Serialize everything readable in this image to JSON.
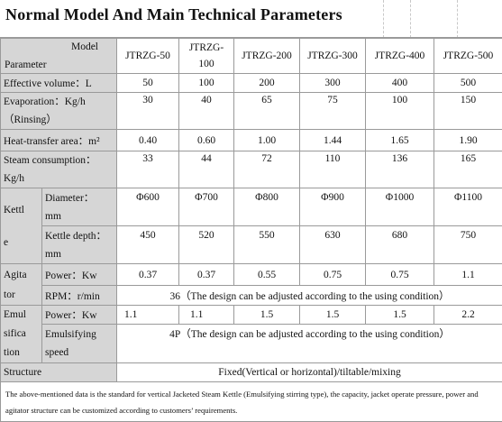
{
  "title": "Normal Model And Main Technical Parameters",
  "header": {
    "model_label": "Model",
    "parameter_label": "Parameter",
    "models": [
      "JTRZG-50",
      "JTRZG-\n100",
      "JTRZG-200",
      "JTRZG-300",
      "JTRZG-400",
      "JTRZG-500"
    ]
  },
  "rows": {
    "effective_volume": {
      "label": "Effective volume：L",
      "values": [
        "50",
        "100",
        "200",
        "300",
        "400",
        "500"
      ]
    },
    "evaporation": {
      "label": "Evaporation：Kg/h\n（Rinsing）",
      "values": [
        "30",
        "40",
        "65",
        "75",
        "100",
        "150"
      ]
    },
    "heat_transfer": {
      "label": "Heat-transfer area：m²",
      "values": [
        "0.40",
        "0.60",
        "1.00",
        "1.44",
        "1.65",
        "1.90"
      ]
    },
    "steam": {
      "label": "Steam consumption：\nKg/h",
      "values": [
        "33",
        "44",
        "72",
        "110",
        "136",
        "165"
      ]
    },
    "kettle": {
      "group": "Kettl\ne",
      "diameter_label": "Diameter：\nmm",
      "diameter": [
        "Φ600",
        "Φ700",
        "Φ800",
        "Φ900",
        "Φ1000",
        "Φ1100"
      ],
      "depth_label": "Kettle depth：\nmm",
      "depth": [
        "450",
        "520",
        "550",
        "630",
        "680",
        "750"
      ]
    },
    "agitator": {
      "group": "Agita\ntor",
      "power_label": "Power：Kw",
      "power": [
        "0.37",
        "0.37",
        "0.55",
        "0.75",
        "0.75",
        "1.1"
      ],
      "rpm_label": "RPM：r/min",
      "rpm_value": "36（The design can be adjusted according to the using condition）"
    },
    "emulsification": {
      "group": "Emul\nsifica\ntion",
      "power_label": "Power：Kw",
      "power": [
        "1.1",
        "1.1",
        "1.5",
        "1.5",
        "1.5",
        "2.2"
      ],
      "speed_label": "Emulsifying\nspeed",
      "speed_value": "4P（The design can be adjusted according to the using condition）"
    },
    "structure": {
      "label": "Structure",
      "value": "Fixed(Vertical or horizontal)/tiltable/mixing"
    }
  },
  "note": "The above-mentioned data is the standard for vertical Jacketed Steam Kettle (Emulsifying stirring type), the capacity, jacket operate pressure, power and agitator structure can be customized according to customers’ requirements."
}
